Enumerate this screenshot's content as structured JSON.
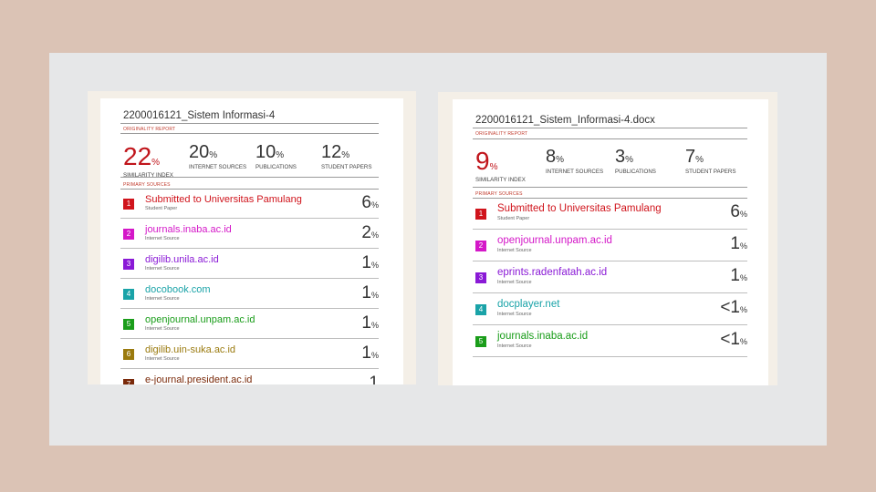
{
  "report_a": {
    "title": "2200016121_Sistem Informasi-4",
    "section_originality": "ORIGINALITY REPORT",
    "stats": [
      {
        "value": "22",
        "unit": "%",
        "label": "SIMILARITY INDEX",
        "color": "#c0151b"
      },
      {
        "value": "20",
        "unit": "%",
        "label": "INTERNET SOURCES",
        "color": "#333333"
      },
      {
        "value": "10",
        "unit": "%",
        "label": "PUBLICATIONS",
        "color": "#333333"
      },
      {
        "value": "12",
        "unit": "%",
        "label": "STUDENT PAPERS",
        "color": "#333333"
      }
    ],
    "section_sources": "PRIMARY SOURCES",
    "sources": [
      {
        "num": "1",
        "name": "Submitted to Universitas Pamulang",
        "type": "Student Paper",
        "value": "6",
        "unit": "%",
        "color": "#d0141c"
      },
      {
        "num": "2",
        "name": "journals.inaba.ac.id",
        "type": "Internet Source",
        "value": "2",
        "unit": "%",
        "color": "#d418c8"
      },
      {
        "num": "3",
        "name": "digilib.unila.ac.id",
        "type": "Internet Source",
        "value": "1",
        "unit": "%",
        "color": "#8a1ad6"
      },
      {
        "num": "4",
        "name": "docobook.com",
        "type": "Internet Source",
        "value": "1",
        "unit": "%",
        "color": "#1aa3a8"
      },
      {
        "num": "5",
        "name": "openjournal.unpam.ac.id",
        "type": "Internet Source",
        "value": "1",
        "unit": "%",
        "color": "#1a9d1a"
      },
      {
        "num": "6",
        "name": "digilib.uin-suka.ac.id",
        "type": "Internet Source",
        "value": "1",
        "unit": "%",
        "color": "#9a7a0e"
      },
      {
        "num": "7",
        "name": "e-journal.president.ac.id",
        "type": "",
        "value": "1",
        "unit": "",
        "color": "#7a2a0a"
      }
    ]
  },
  "report_b": {
    "title": "2200016121_Sistem_Informasi-4.docx",
    "section_originality": "ORIGINALITY REPORT",
    "stats": [
      {
        "value": "9",
        "unit": "%",
        "label": "SIMILARITY INDEX",
        "color": "#c0151b"
      },
      {
        "value": "8",
        "unit": "%",
        "label": "INTERNET SOURCES",
        "color": "#333333"
      },
      {
        "value": "3",
        "unit": "%",
        "label": "PUBLICATIONS",
        "color": "#333333"
      },
      {
        "value": "7",
        "unit": "%",
        "label": "STUDENT PAPERS",
        "color": "#333333"
      }
    ],
    "section_sources": "PRIMARY SOURCES",
    "sources": [
      {
        "num": "1",
        "name": "Submitted to Universitas Pamulang",
        "type": "Student Paper",
        "value": "6",
        "unit": "%",
        "color": "#d0141c"
      },
      {
        "num": "2",
        "name": "openjournal.unpam.ac.id",
        "type": "Internet Source",
        "value": "1",
        "unit": "%",
        "color": "#d418c8"
      },
      {
        "num": "3",
        "name": "eprints.radenfatah.ac.id",
        "type": "Internet Source",
        "value": "1",
        "unit": "%",
        "color": "#8a1ad6"
      },
      {
        "num": "4",
        "name": "docplayer.net",
        "type": "Internet Source",
        "value": "<1",
        "unit": "%",
        "color": "#1aa3a8"
      },
      {
        "num": "5",
        "name": "journals.inaba.ac.id",
        "type": "Internet Source",
        "value": "<1",
        "unit": "%",
        "color": "#1a9d1a"
      }
    ]
  }
}
